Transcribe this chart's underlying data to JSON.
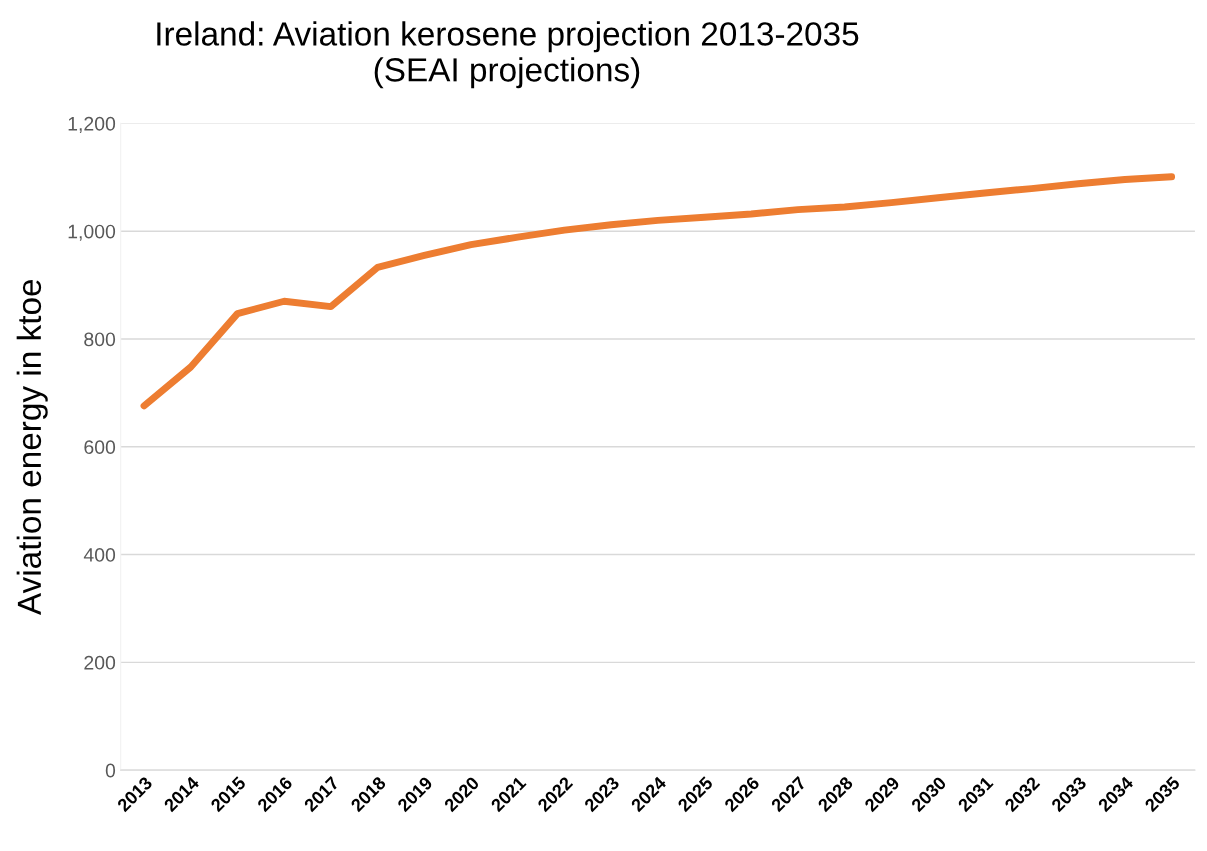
{
  "chart_data": {
    "type": "line",
    "title": "Ireland: Aviation kerosene projection 2013-2035\n(SEAI projections)",
    "ylabel": "Aviation energy in ktoe",
    "categories": [
      "2013",
      "2014",
      "2015",
      "2016",
      "2017",
      "2018",
      "2019",
      "2020",
      "2021",
      "2022",
      "2023",
      "2024",
      "2025",
      "2026",
      "2027",
      "2028",
      "2029",
      "2030",
      "2031",
      "2032",
      "2033",
      "2034",
      "2035"
    ],
    "series": [
      {
        "color": "#ed7d31",
        "values": [
          676,
          748,
          847,
          870,
          860,
          933,
          955,
          975,
          989,
          1002,
          1012,
          1020,
          1026,
          1032,
          1040,
          1045,
          1053,
          1062,
          1071,
          1079,
          1088,
          1096,
          1101
        ]
      }
    ],
    "ylim": [
      0,
      1200
    ],
    "yticks": [
      0,
      200,
      400,
      600,
      800,
      {
        "value": 1000,
        "label": "1,000"
      },
      {
        "value": 1200,
        "label": "1,200"
      }
    ],
    "grid": "y",
    "marker": "none",
    "line_style": "solid"
  }
}
